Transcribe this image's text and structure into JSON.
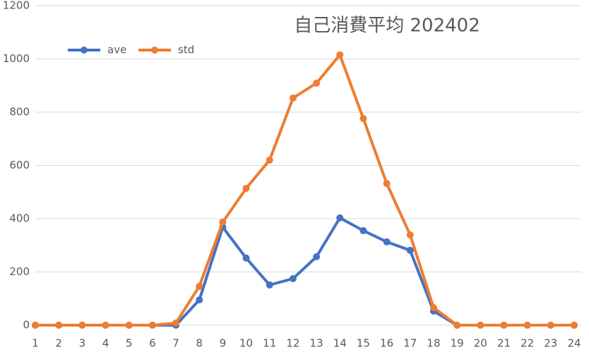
{
  "chart_data": {
    "type": "line",
    "title": "自己消費平均 202402",
    "categories": [
      "1",
      "2",
      "3",
      "4",
      "5",
      "6",
      "7",
      "8",
      "9",
      "10",
      "11",
      "12",
      "13",
      "14",
      "15",
      "16",
      "17",
      "18",
      "19",
      "20",
      "21",
      "22",
      "23",
      "24"
    ],
    "series": [
      {
        "name": "ave",
        "color": "#4472c4",
        "values": [
          0,
          0,
          0,
          0,
          0,
          0,
          0,
          95,
          368,
          252,
          151,
          175,
          257,
          403,
          355,
          313,
          281,
          53,
          0,
          0,
          0,
          0,
          0,
          0
        ]
      },
      {
        "name": "std",
        "color": "#ed7d31",
        "values": [
          0,
          0,
          0,
          0,
          0,
          0,
          8,
          146,
          387,
          514,
          620,
          853,
          909,
          1015,
          776,
          532,
          339,
          66,
          0,
          0,
          0,
          0,
          0,
          0
        ]
      }
    ],
    "ylim": [
      0,
      1200
    ],
    "yticks": [
      0,
      200,
      400,
      600,
      800,
      1000,
      1200
    ],
    "grid": true,
    "legend": "top-left"
  }
}
